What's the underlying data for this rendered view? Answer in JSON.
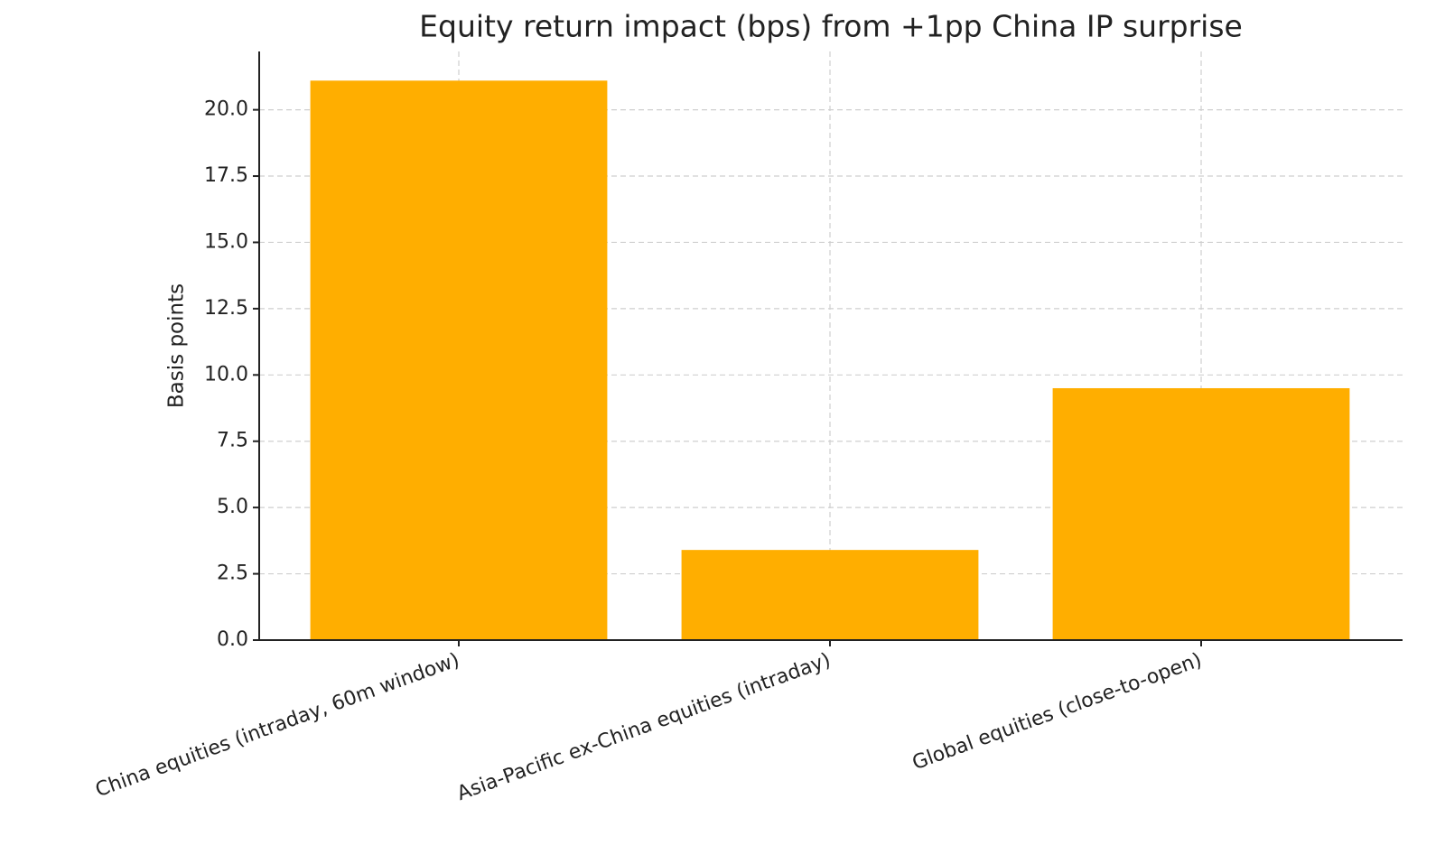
{
  "chart_data": {
    "type": "bar",
    "title": "Equity return impact (bps) from +1pp China IP surprise",
    "y_label": "Basis points",
    "categories": [
      "China equities (intraday, 60m window)",
      "Asia-Pacific ex-China equities (intraday)",
      "Global equities (close-to-open)"
    ],
    "values": [
      21.1,
      3.4,
      9.5
    ],
    "color": "#ffae00",
    "ylim": [
      0,
      22.2
    ],
    "yticks": [
      {
        "value": 0,
        "label": "0.0"
      },
      2.5,
      {
        "value": 5,
        "label": "5.0"
      },
      7.5,
      {
        "value": 10,
        "label": "10.0"
      },
      12.5,
      {
        "value": 15,
        "label": "15.0"
      },
      17.5,
      {
        "value": 20,
        "label": "20.0"
      }
    ],
    "grid": true
  }
}
